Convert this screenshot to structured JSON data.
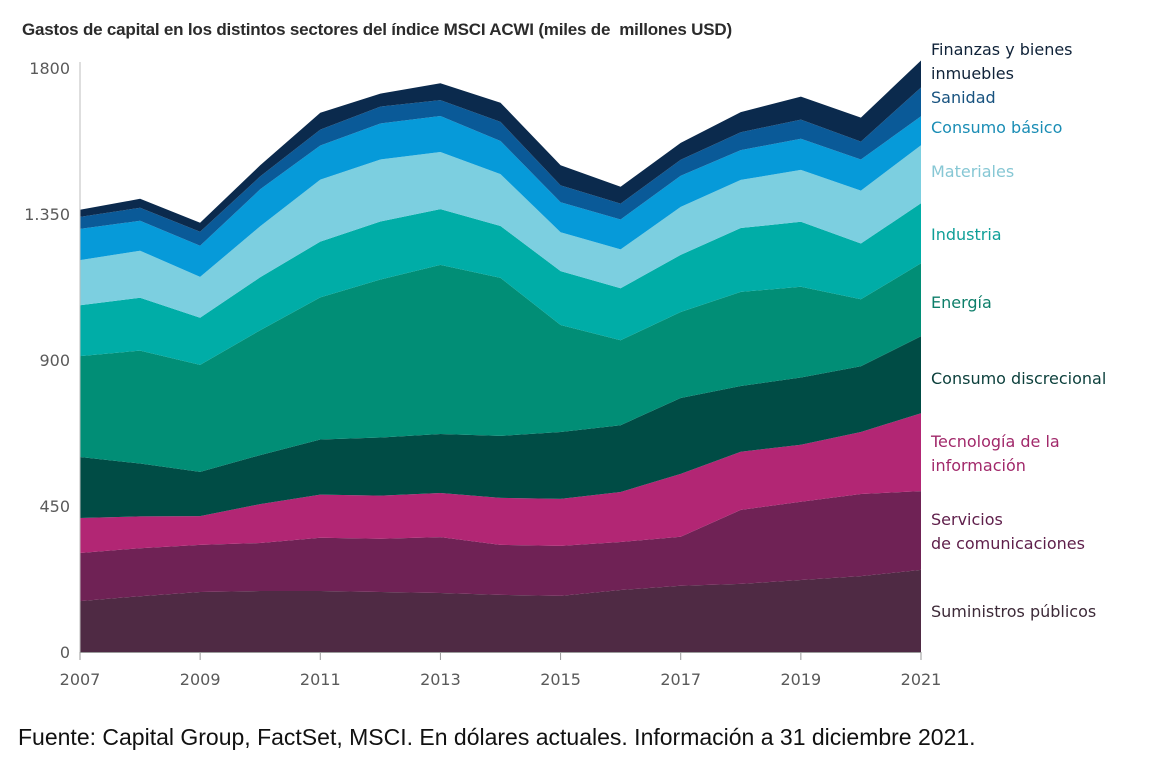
{
  "title": "Gastos de capital en los distintos sectores del índice MSCI ACWI (miles de  millones USD)",
  "source": "Fuente: Capital Group, FactSet, MSCI. En dólares actuales. Información a 31 diciembre 2021.",
  "chart_data": {
    "type": "area",
    "stacked": true,
    "title": "Gastos de capital en los distintos sectores del índice MSCI ACWI (miles de  millones USD)",
    "xlabel": "",
    "ylabel": "",
    "x": [
      2007,
      2008,
      2009,
      2010,
      2011,
      2012,
      2013,
      2014,
      2015,
      2016,
      2017,
      2018,
      2019,
      2020,
      2021
    ],
    "x_tick_labels": [
      "2007",
      "2009",
      "2011",
      "2013",
      "2015",
      "2017",
      "2019",
      "2021"
    ],
    "x_tick_values": [
      2007,
      2009,
      2011,
      2013,
      2015,
      2017,
      2019,
      2021
    ],
    "y_tick_labels": [
      "0",
      "450",
      "900",
      "1.350",
      "1800"
    ],
    "y_tick_values": [
      0,
      450,
      900,
      1350,
      1800
    ],
    "ylim": [
      0,
      1800
    ],
    "grid": false,
    "legend_position": "right",
    "series": [
      {
        "name": "Suministros públicos",
        "color": "#4f2a44",
        "label_color": "#3d2a38",
        "values": [
          157,
          172,
          185,
          188,
          188,
          185,
          182,
          176,
          173,
          191,
          204,
          210,
          222,
          234,
          253
        ]
      },
      {
        "name": "Servicios de comunicaciones",
        "color": "#6f2255",
        "label_color": "#5e1e4a",
        "values": [
          148,
          148,
          145,
          148,
          164,
          164,
          172,
          154,
          154,
          148,
          151,
          228,
          241,
          253,
          243
        ]
      },
      {
        "name": "Tecnología de la información",
        "color": "#b22674",
        "label_color": "#a1286a",
        "values": [
          108,
          98,
          89,
          120,
          133,
          133,
          136,
          145,
          145,
          154,
          194,
          179,
          176,
          191,
          240
        ]
      },
      {
        "name": "Consumo discrecional",
        "color": "#004c45",
        "label_color": "#0b3f3b",
        "values": [
          188,
          163,
          136,
          151,
          170,
          179,
          182,
          191,
          206,
          206,
          234,
          203,
          207,
          203,
          237
        ]
      },
      {
        "name": "Energía",
        "color": "#018e76",
        "label_color": "#0d7e6a",
        "values": [
          311,
          348,
          330,
          385,
          438,
          487,
          521,
          487,
          330,
          262,
          265,
          290,
          280,
          206,
          225
        ]
      },
      {
        "name": "Industria",
        "color": "#00ada7",
        "label_color": "#0f9f98",
        "values": [
          157,
          163,
          145,
          163,
          172,
          179,
          172,
          160,
          166,
          160,
          176,
          197,
          200,
          172,
          185
        ]
      },
      {
        "name": "Materiales",
        "color": "#7ccfe0",
        "label_color": "#86c7d4",
        "values": [
          139,
          145,
          126,
          157,
          191,
          191,
          176,
          160,
          120,
          120,
          148,
          148,
          160,
          163,
          179
        ]
      },
      {
        "name": "Consumo básico",
        "color": "#069ad9",
        "label_color": "#1a8db5",
        "values": [
          96,
          92,
          96,
          114,
          105,
          111,
          111,
          102,
          92,
          92,
          96,
          92,
          96,
          96,
          89
        ]
      },
      {
        "name": "Sanidad",
        "color": "#0a5a98",
        "label_color": "#17527f",
        "values": [
          37,
          40,
          43,
          40,
          49,
          52,
          49,
          59,
          52,
          49,
          49,
          55,
          59,
          55,
          89
        ]
      },
      {
        "name": "Finanzas y bienes inmuebles",
        "color": "#0b2a4d",
        "label_color": "#0f2238",
        "values": [
          22,
          28,
          28,
          34,
          52,
          40,
          52,
          59,
          62,
          52,
          52,
          62,
          71,
          74,
          83
        ]
      }
    ],
    "legend_labels": [
      {
        "text": "Finanzas y bienes\ninmuebles",
        "series": "Finanzas y bienes inmuebles"
      },
      {
        "text": "Sanidad",
        "series": "Sanidad"
      },
      {
        "text": "Consumo básico",
        "series": "Consumo básico"
      },
      {
        "text": "Materiales",
        "series": "Materiales"
      },
      {
        "text": "Industria",
        "series": "Industria"
      },
      {
        "text": "Energía",
        "series": "Energía"
      },
      {
        "text": "Consumo discrecional",
        "series": "Consumo discrecional"
      },
      {
        "text": "Tecnología de la\ninformación",
        "series": "Tecnología de la información"
      },
      {
        "text": "Servicios\nde comunicaciones",
        "series": "Servicios de comunicaciones"
      },
      {
        "text": "Suministros públicos",
        "series": "Suministros públicos"
      }
    ]
  }
}
